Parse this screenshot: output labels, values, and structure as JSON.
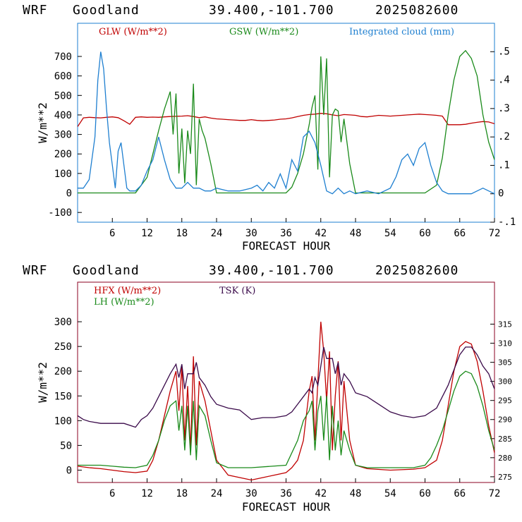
{
  "colors": {
    "glw": "#c00000",
    "gsw": "#1a8a1a",
    "cloud": "#1e7fd0",
    "hfx": "#c00000",
    "lh": "#1a8a1a",
    "tsk": "#3a0a4a",
    "frame_top": "#1e7fd0",
    "frame_bottom": "#8b0020"
  },
  "chart_data": [
    {
      "type": "line",
      "header": {
        "model": "WRF",
        "site": "Goodland",
        "coords": "39.400,-101.700",
        "init": "2025082600"
      },
      "xlabel": "FORECAST HOUR",
      "ylabel": "W/m**2",
      "xlim": [
        0,
        72
      ],
      "ylim": [
        -150,
        870
      ],
      "y2lim": [
        -0.1,
        0.6
      ],
      "xticks": [
        "6",
        "12",
        "18",
        "24",
        "30",
        "36",
        "42",
        "48",
        "54",
        "60",
        "66",
        "72"
      ],
      "yticks": [
        "-100",
        "0",
        "100",
        "200",
        "300",
        "400",
        "500",
        "600",
        "700"
      ],
      "y2ticks": [
        "-.1",
        "0",
        ".1",
        ".2",
        ".3",
        ".4",
        ".5"
      ],
      "legend": [
        "GLW (W/m**2)",
        "GSW (W/m**2)",
        "Integrated cloud (mm)"
      ],
      "series": [
        {
          "name": "GLW (W/m**2)",
          "axis": "left",
          "x": [
            0,
            1,
            2,
            3,
            4,
            5,
            6,
            7,
            8,
            9,
            10,
            11,
            12,
            13,
            14,
            15,
            16,
            17,
            18,
            19,
            20,
            21,
            22,
            23,
            24,
            25,
            26,
            27,
            28,
            29,
            30,
            31,
            32,
            33,
            34,
            35,
            36,
            37,
            38,
            39,
            40,
            41,
            42,
            43,
            44,
            45,
            46,
            47,
            48,
            49,
            50,
            51,
            52,
            53,
            54,
            55,
            56,
            57,
            58,
            59,
            60,
            61,
            62,
            63,
            64,
            65,
            66,
            67,
            68,
            69,
            70,
            71,
            72
          ],
          "y": [
            340,
            385,
            388,
            386,
            385,
            388,
            390,
            386,
            370,
            352,
            388,
            390,
            388,
            389,
            388,
            390,
            392,
            393,
            394,
            396,
            392,
            386,
            390,
            384,
            380,
            378,
            376,
            374,
            372,
            372,
            376,
            372,
            370,
            372,
            374,
            378,
            380,
            385,
            392,
            398,
            402,
            404,
            408,
            406,
            400,
            396,
            402,
            400,
            398,
            392,
            390,
            394,
            398,
            396,
            394,
            396,
            398,
            400,
            402,
            404,
            402,
            400,
            398,
            394,
            350,
            350,
            350,
            352,
            358,
            362,
            366,
            364,
            355
          ]
        },
        {
          "name": "GSW (W/m**2)",
          "axis": "left",
          "x": [
            0,
            5,
            10,
            12,
            13,
            14,
            15,
            16,
            16.5,
            17,
            17.5,
            18,
            18.5,
            19,
            19.5,
            20,
            20.5,
            21,
            21.5,
            22,
            23,
            24,
            30,
            36,
            37,
            38,
            39,
            40,
            40.5,
            41,
            41.5,
            42,
            42.5,
            43,
            43.5,
            44,
            44.5,
            45,
            45.5,
            46,
            47,
            48,
            54,
            60,
            62,
            63,
            64,
            65,
            66,
            67,
            68,
            69,
            70,
            71,
            72
          ],
          "y": [
            0,
            0,
            0,
            80,
            200,
            320,
            430,
            520,
            300,
            510,
            100,
            330,
            50,
            320,
            200,
            560,
            40,
            380,
            320,
            280,
            150,
            0,
            0,
            0,
            30,
            100,
            200,
            350,
            440,
            500,
            120,
            700,
            400,
            690,
            80,
            400,
            430,
            420,
            260,
            380,
            150,
            0,
            0,
            0,
            40,
            180,
            400,
            580,
            700,
            730,
            690,
            600,
            400,
            260,
            170
          ]
        },
        {
          "name": "Integrated cloud (mm)",
          "axis": "right",
          "x": [
            0,
            1,
            2,
            3,
            3.5,
            4,
            4.5,
            5,
            5.5,
            6,
            6.5,
            7,
            7.5,
            8,
            8.5,
            9,
            10,
            11,
            12,
            13,
            14,
            15,
            16,
            17,
            18,
            19,
            20,
            21,
            22,
            23,
            24,
            26,
            28,
            30,
            31,
            32,
            33,
            34,
            35,
            36,
            37,
            38,
            39,
            40,
            41,
            42,
            43,
            44,
            45,
            46,
            47,
            48,
            50,
            52,
            54,
            55,
            56,
            57,
            58,
            59,
            60,
            61,
            62,
            63,
            64,
            66,
            68,
            69,
            70,
            71,
            72
          ],
          "y": [
            0.02,
            0.02,
            0.05,
            0.2,
            0.4,
            0.5,
            0.44,
            0.3,
            0.18,
            0.1,
            0.02,
            0.15,
            0.18,
            0.1,
            0.02,
            0.01,
            0.01,
            0.03,
            0.08,
            0.12,
            0.2,
            0.12,
            0.05,
            0.02,
            0.02,
            0.04,
            0.02,
            0.02,
            0.01,
            0.01,
            0.02,
            0.01,
            0.01,
            0.02,
            0.03,
            0.01,
            0.04,
            0.02,
            0.07,
            0.02,
            0.12,
            0.08,
            0.2,
            0.22,
            0.18,
            0.1,
            0.01,
            0.0,
            0.02,
            0.0,
            0.01,
            0.0,
            0.01,
            0.0,
            0.02,
            0.06,
            0.12,
            0.14,
            0.1,
            0.16,
            0.18,
            0.1,
            0.04,
            0.01,
            0.0,
            0.0,
            0.0,
            0.01,
            0.02,
            0.01,
            0.0
          ]
        }
      ]
    },
    {
      "type": "line",
      "header": {
        "model": "WRF",
        "site": "Goodland",
        "coords": "39.400,-101.700",
        "init": "2025082600"
      },
      "xlabel": "FORECAST HOUR",
      "ylabel": "W/m**2",
      "xlim": [
        0,
        72
      ],
      "ylim": [
        -25,
        380
      ],
      "y2lim": [
        273.5,
        326
      ],
      "xticks": [
        "6",
        "12",
        "18",
        "24",
        "30",
        "36",
        "42",
        "48",
        "54",
        "60",
        "66",
        "72"
      ],
      "yticks": [
        "0",
        "50",
        "100",
        "150",
        "200",
        "250",
        "300"
      ],
      "y2ticks": [
        "275",
        "280",
        "285",
        "290",
        "295",
        "300",
        "305",
        "310",
        "315"
      ],
      "legend": [
        "HFX (W/m**2)",
        "LH  (W/m**2)",
        "TSK (K)"
      ],
      "series": [
        {
          "name": "HFX (W/m**2)",
          "axis": "left",
          "x": [
            0,
            2,
            4,
            6,
            8,
            10,
            12,
            13,
            14,
            15,
            16,
            17,
            17.5,
            18,
            18.5,
            19,
            19.5,
            20,
            20.5,
            21,
            22,
            23,
            24,
            26,
            28,
            30,
            32,
            34,
            36,
            37,
            38,
            39,
            40,
            40.5,
            41,
            41.5,
            42,
            42.5,
            43,
            43.5,
            44,
            44.5,
            45,
            45.5,
            46,
            47,
            48,
            50,
            54,
            58,
            60,
            62,
            63,
            64,
            65,
            66,
            67,
            68,
            69,
            70,
            71,
            72
          ],
          "y": [
            8,
            5,
            3,
            0,
            -3,
            -5,
            -2,
            20,
            60,
            110,
            160,
            200,
            120,
            210,
            60,
            170,
            40,
            230,
            50,
            180,
            140,
            80,
            20,
            -10,
            -15,
            -20,
            -15,
            -10,
            -5,
            5,
            20,
            60,
            160,
            190,
            60,
            180,
            300,
            240,
            140,
            240,
            40,
            150,
            220,
            60,
            180,
            60,
            10,
            3,
            0,
            2,
            5,
            20,
            60,
            130,
            200,
            250,
            260,
            255,
            220,
            160,
            90,
            35
          ]
        },
        {
          "name": "LH  (W/m**2)",
          "axis": "left",
          "x": [
            0,
            2,
            4,
            6,
            8,
            10,
            12,
            13,
            14,
            15,
            16,
            17,
            17.5,
            18,
            18.5,
            19,
            19.5,
            20,
            20.5,
            21,
            22,
            23,
            24,
            26,
            30,
            36,
            38,
            39,
            40,
            40.5,
            41,
            41.5,
            42,
            42.5,
            43,
            43.5,
            44,
            44.5,
            45,
            45.5,
            46,
            47,
            48,
            50,
            54,
            58,
            60,
            61,
            62,
            63,
            64,
            65,
            66,
            67,
            68,
            69,
            70,
            71,
            72
          ],
          "y": [
            10,
            10,
            10,
            8,
            6,
            5,
            10,
            30,
            60,
            100,
            130,
            140,
            80,
            130,
            40,
            130,
            30,
            140,
            20,
            130,
            110,
            60,
            15,
            5,
            5,
            10,
            60,
            100,
            120,
            140,
            40,
            120,
            150,
            60,
            150,
            20,
            130,
            40,
            100,
            30,
            80,
            40,
            10,
            5,
            5,
            5,
            10,
            25,
            50,
            80,
            120,
            160,
            190,
            200,
            195,
            170,
            130,
            80,
            40
          ]
        },
        {
          "name": "TSK (K)",
          "axis": "right",
          "x": [
            0,
            1,
            2,
            4,
            6,
            8,
            10,
            11,
            12,
            13,
            14,
            15,
            16,
            17,
            17.5,
            18,
            18.5,
            19,
            20,
            20.5,
            21,
            22,
            23,
            24,
            26,
            28,
            30,
            32,
            34,
            36,
            37,
            38,
            39,
            40,
            40.5,
            41,
            41.5,
            42,
            42.5,
            43,
            44,
            44.5,
            45,
            45.5,
            46,
            47,
            48,
            50,
            52,
            54,
            56,
            58,
            60,
            62,
            63,
            64,
            65,
            66,
            67,
            68,
            69,
            70,
            71,
            72
          ],
          "y": [
            291,
            290,
            289.5,
            289,
            289,
            289,
            288,
            290,
            291,
            293,
            296,
            299,
            302,
            304.5,
            301,
            304.5,
            298,
            302,
            302,
            305,
            301,
            299,
            296,
            294,
            293,
            292.5,
            290,
            290.5,
            290.5,
            291,
            292,
            294,
            296,
            298,
            297,
            301,
            299,
            304,
            309,
            306,
            306,
            302,
            305,
            299,
            302,
            300,
            297,
            296,
            294,
            292,
            291,
            290.5,
            291,
            293,
            296,
            299,
            303,
            307,
            309,
            309,
            307,
            304,
            302,
            298
          ]
        }
      ]
    }
  ]
}
